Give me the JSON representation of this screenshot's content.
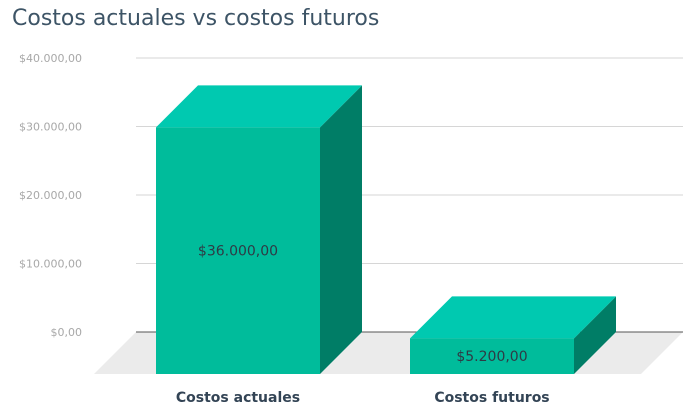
{
  "chart_data": {
    "type": "bar",
    "title": "Costos actuales vs costos futuros",
    "xlabel": "",
    "ylabel": "",
    "categories": [
      "Costos actuales",
      "Costos futuros"
    ],
    "values": [
      36000,
      5200
    ],
    "data_labels": [
      "$36.000,00",
      "$5.200,00"
    ],
    "y_ticks": [
      0,
      10000,
      20000,
      30000,
      40000
    ],
    "y_tick_labels": [
      "$0,00",
      "$10.000,00",
      "$20.000,00",
      "$30.000,00",
      "$40.000,00"
    ],
    "ylim": [
      0,
      40000
    ],
    "grid": true,
    "legend": "none",
    "three_d": true,
    "colors": {
      "bar_front": "#00bc9b",
      "bar_top": "#00c9b0",
      "bar_side": "#007d66",
      "floor": "#ebebeb",
      "grid": "#d6d6d6",
      "axis": "#555555"
    }
  }
}
